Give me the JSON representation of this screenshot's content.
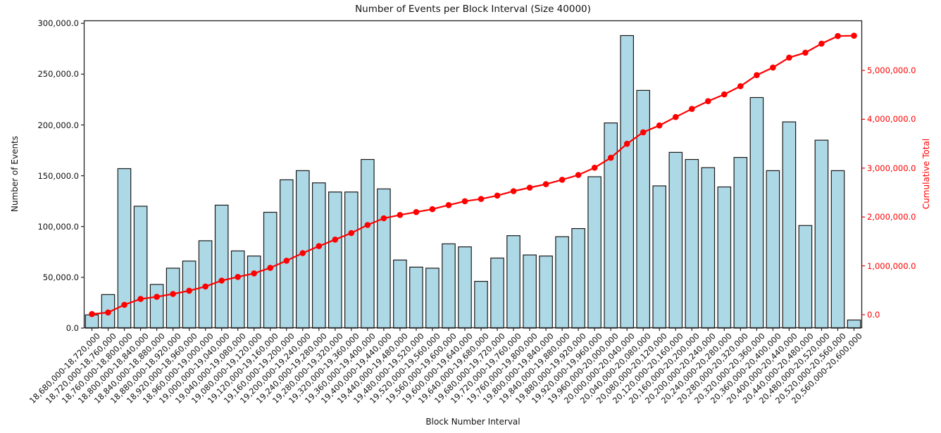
{
  "title": "Number of Events per Block Interval (Size 40000)",
  "axes": {
    "x_label": "Block Number Interval",
    "y_left_label": "Number of Events",
    "y_right_label": "Cumulative Total",
    "y_left_tick_labels": [
      "0.0",
      "50,000.0",
      "100,000.0",
      "150,000.0",
      "200,000.0",
      "250,000.0",
      "300,000.0"
    ],
    "y_left_tick_values": [
      0,
      50000,
      100000,
      150000,
      200000,
      250000,
      300000
    ],
    "y_right_tick_labels": [
      "0.0",
      "1,000,000.0",
      "2,000,000.0",
      "3,000,000.0",
      "4,000,000.0",
      "5,000,000.0"
    ],
    "y_right_tick_values": [
      0,
      1000000,
      2000000,
      3000000,
      4000000,
      5000000
    ]
  },
  "colors": {
    "bar_fill": "#add8e6",
    "bar_edge": "#1a1a1a",
    "line": "#ff0000",
    "right_axis_text": "#ff0000",
    "axis_text": "#111111",
    "spine": "#222222",
    "background": "#ffffff"
  },
  "chart_data": {
    "type": "bar",
    "title": "Number of Events per Block Interval (Size 40000)",
    "xlabel": "Block Number Interval",
    "ylabel": "Number of Events",
    "ylabel_right": "Cumulative Total",
    "grid": false,
    "legend_position": "none",
    "ylim_left": [
      0,
      302900
    ],
    "ylim_right": [
      -274000,
      6023000
    ],
    "categories": [
      "18,680,000-18,720,000",
      "18,720,000-18,760,000",
      "18,760,000-18,800,000",
      "18,800,000-18,840,000",
      "18,840,000-18,880,000",
      "18,880,000-18,920,000",
      "18,920,000-18,960,000",
      "18,960,000-19,000,000",
      "19,000,000-19,040,000",
      "19,040,000-19,080,000",
      "19,080,000-19,120,000",
      "19,120,000-19,160,000",
      "19,160,000-19,200,000",
      "19,200,000-19,240,000",
      "19,240,000-19,280,000",
      "19,280,000-19,320,000",
      "19,320,000-19,360,000",
      "19,360,000-19,400,000",
      "19,400,000-19,440,000",
      "19,440,000-19,480,000",
      "19,480,000-19,520,000",
      "19,520,000-19,560,000",
      "19,560,000-19,600,000",
      "19,600,000-19,640,000",
      "19,640,000-19,680,000",
      "19,680,000-19,720,000",
      "19,720,000-19,760,000",
      "19,760,000-19,800,000",
      "19,800,000-19,840,000",
      "19,840,000-19,880,000",
      "19,880,000-19,920,000",
      "19,920,000-19,960,000",
      "19,960,000-20,000,000",
      "20,000,000-20,040,000",
      "20,040,000-20,080,000",
      "20,080,000-20,120,000",
      "20,120,000-20,160,000",
      "20,160,000-20,200,000",
      "20,200,000-20,240,000",
      "20,240,000-20,280,000",
      "20,280,000-20,320,000",
      "20,320,000-20,360,000",
      "20,360,000-20,400,000",
      "20,400,000-20,440,000",
      "20,440,000-20,480,000",
      "20,480,000-20,520,000",
      "20,520,000-20,560,000",
      "20,560,000-20,600,000"
    ],
    "series": [
      {
        "name": "Number of Events",
        "type": "bar",
        "axis": "left",
        "values": [
          13000,
          33000,
          157000,
          120000,
          43000,
          59000,
          66000,
          86000,
          121000,
          76000,
          71000,
          114000,
          146000,
          155000,
          143000,
          134000,
          134000,
          166000,
          137000,
          67000,
          60000,
          59000,
          83000,
          80000,
          46000,
          69000,
          91000,
          72000,
          71000,
          90000,
          98000,
          149000,
          202000,
          288000,
          234000,
          140000,
          173000,
          166000,
          158000,
          139000,
          168000,
          227000,
          155000,
          203000,
          101000,
          185000,
          155000,
          8000
        ]
      },
      {
        "name": "Cumulative Total",
        "type": "line",
        "axis": "right",
        "marker": "circle",
        "values": [
          13000,
          46000,
          203000,
          323000,
          366000,
          425000,
          491000,
          577000,
          698000,
          774000,
          845000,
          959000,
          1105000,
          1260000,
          1403000,
          1537000,
          1671000,
          1837000,
          1974000,
          2041000,
          2101000,
          2160000,
          2243000,
          2323000,
          2369000,
          2438000,
          2529000,
          2601000,
          2672000,
          2762000,
          2860000,
          3009000,
          3211000,
          3499000,
          3733000,
          3873000,
          4046000,
          4212000,
          4370000,
          4509000,
          4677000,
          4904000,
          5059000,
          5262000,
          5363000,
          5548000,
          5703000,
          5711000
        ]
      }
    ]
  }
}
